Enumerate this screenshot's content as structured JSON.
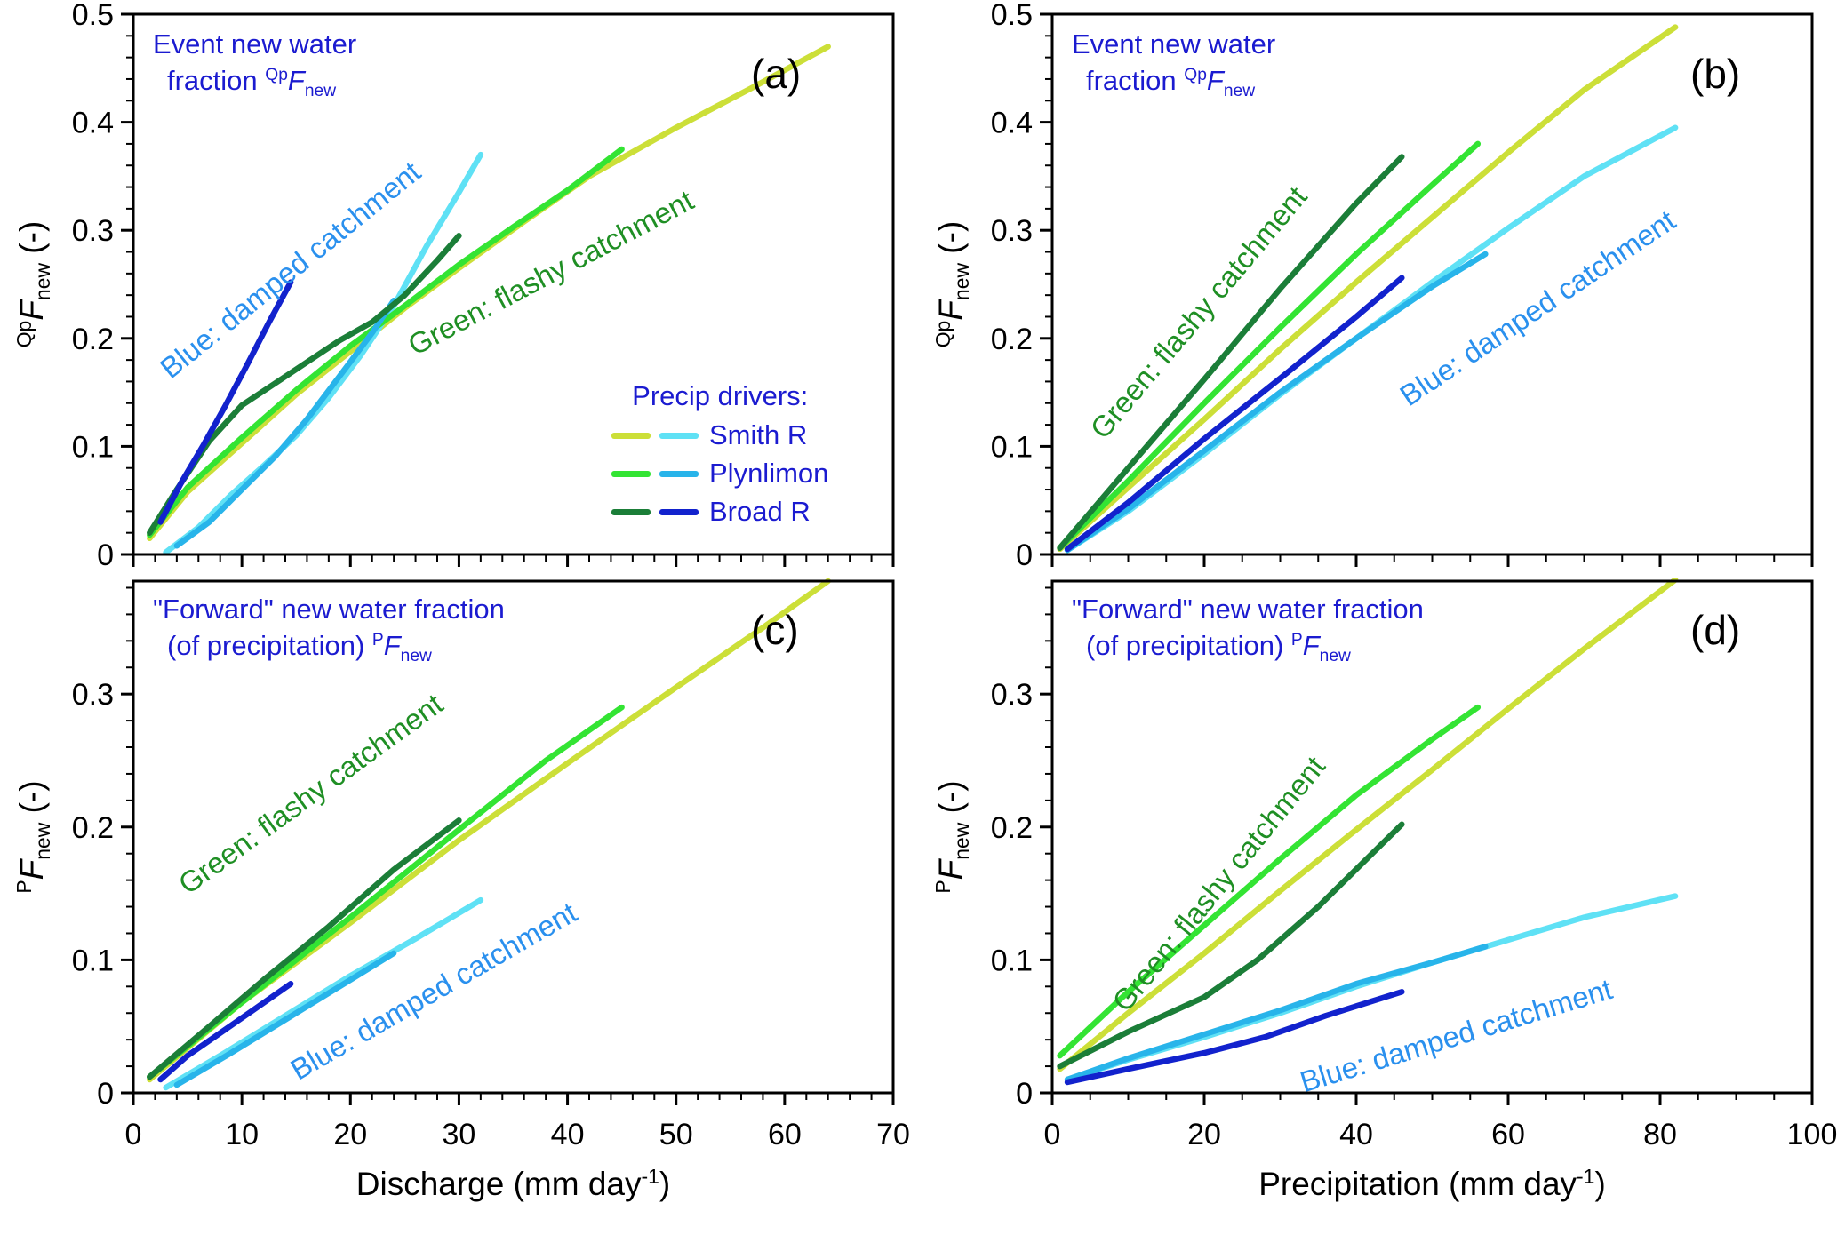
{
  "annotations": {
    "flashy": "Green: flashy catchment",
    "damped": "Blue: damped catchment"
  },
  "legend": {
    "title": "Precip drivers:",
    "entries": [
      {
        "label": "Smith R",
        "swatch_colors": [
          "#ccdf38",
          "#5fe1f5"
        ]
      },
      {
        "label": "Plynlimon",
        "swatch_colors": [
          "#33e433",
          "#28b4ea"
        ]
      },
      {
        "label": "Broad R",
        "swatch_colors": [
          "#1b7e38",
          "#1222cd"
        ]
      }
    ]
  },
  "colors": {
    "title_blue": "#1b1bd0",
    "flashy_label_green": "#1f8f24",
    "damped_label_blue": "#2a90ee",
    "axis": "#000000"
  },
  "chart_data": [
    {
      "id": "a",
      "type": "line",
      "panel_label": "(a)",
      "title": {
        "line1": "Event new water",
        "line2_pre": "fraction ",
        "sup": "Qp",
        "sym": "F",
        "sub": "new"
      },
      "ylabel": {
        "sup": "Qp",
        "sym": "F",
        "sub": "new",
        "post": " (-)"
      },
      "x_variable": "Discharge (mm day -1)",
      "xlim": [
        0,
        70
      ],
      "ylim": [
        0,
        0.5
      ],
      "xticks": [
        0,
        10,
        20,
        30,
        40,
        50,
        60,
        70
      ],
      "xminor": 2,
      "yticks": [
        0,
        0.1,
        0.2,
        0.3,
        0.4,
        0.5
      ],
      "yminor": 0.02,
      "grid": false,
      "series": [
        {
          "name": "Smith R — flashy",
          "color": "#ccdf38",
          "points": [
            [
              1.5,
              0.015
            ],
            [
              5,
              0.058
            ],
            [
              10,
              0.103
            ],
            [
              15,
              0.148
            ],
            [
              20,
              0.188
            ],
            [
              25,
              0.228
            ],
            [
              30,
              0.265
            ],
            [
              36,
              0.308
            ],
            [
              42,
              0.35
            ],
            [
              50,
              0.395
            ],
            [
              57,
              0.432
            ],
            [
              64,
              0.47
            ]
          ]
        },
        {
          "name": "Smith R — damped",
          "color": "#5fe1f5",
          "points": [
            [
              3,
              0.002
            ],
            [
              6,
              0.025
            ],
            [
              9,
              0.055
            ],
            [
              12,
              0.082
            ],
            [
              15,
              0.11
            ],
            [
              18,
              0.145
            ],
            [
              21,
              0.185
            ],
            [
              24,
              0.23
            ],
            [
              27,
              0.285
            ],
            [
              30,
              0.335
            ],
            [
              32,
              0.37
            ]
          ]
        },
        {
          "name": "Plynlimon — flashy",
          "color": "#33e433",
          "points": [
            [
              1.5,
              0.018
            ],
            [
              5,
              0.062
            ],
            [
              10,
              0.108
            ],
            [
              15,
              0.152
            ],
            [
              20,
              0.193
            ],
            [
              25,
              0.23
            ],
            [
              30,
              0.268
            ],
            [
              35,
              0.303
            ],
            [
              40,
              0.337
            ],
            [
              45,
              0.375
            ]
          ]
        },
        {
          "name": "Plynlimon — damped",
          "color": "#28b4ea",
          "points": [
            [
              4,
              0.008
            ],
            [
              7,
              0.03
            ],
            [
              10,
              0.06
            ],
            [
              13,
              0.09
            ],
            [
              16,
              0.125
            ],
            [
              19,
              0.165
            ],
            [
              22,
              0.205
            ],
            [
              24,
              0.235
            ]
          ]
        },
        {
          "name": "Broad R — flashy",
          "color": "#1b7e38",
          "points": [
            [
              1.5,
              0.02
            ],
            [
              4,
              0.06
            ],
            [
              7,
              0.105
            ],
            [
              10,
              0.138
            ],
            [
              13,
              0.158
            ],
            [
              16,
              0.178
            ],
            [
              19,
              0.198
            ],
            [
              22,
              0.215
            ],
            [
              25,
              0.24
            ],
            [
              28,
              0.272
            ],
            [
              30,
              0.295
            ]
          ]
        },
        {
          "name": "Broad R — damped",
          "color": "#1222cd",
          "points": [
            [
              2.5,
              0.03
            ],
            [
              4.5,
              0.068
            ],
            [
              6.5,
              0.102
            ],
            [
              8.5,
              0.138
            ],
            [
              10.5,
              0.176
            ],
            [
              12.5,
              0.215
            ],
            [
              14.5,
              0.252
            ]
          ]
        }
      ]
    },
    {
      "id": "b",
      "type": "line",
      "panel_label": "(b)",
      "title": {
        "line1": "Event new water",
        "line2_pre": "fraction ",
        "sup": "Qp",
        "sym": "F",
        "sub": "new"
      },
      "ylabel": {
        "sup": "Qp",
        "sym": "F",
        "sub": "new",
        "post": " (-)"
      },
      "x_variable": "Precipitation (mm day -1)",
      "xlim": [
        0,
        100
      ],
      "ylim": [
        0,
        0.5
      ],
      "xticks": [
        0,
        20,
        40,
        60,
        80,
        100
      ],
      "xminor": 5,
      "yticks": [
        0,
        0.1,
        0.2,
        0.3,
        0.4,
        0.5
      ],
      "yminor": 0.02,
      "grid": false,
      "series": [
        {
          "name": "Smith R — flashy",
          "color": "#ccdf38",
          "points": [
            [
              1,
              0.005
            ],
            [
              10,
              0.062
            ],
            [
              20,
              0.125
            ],
            [
              30,
              0.19
            ],
            [
              40,
              0.252
            ],
            [
              50,
              0.312
            ],
            [
              60,
              0.372
            ],
            [
              70,
              0.43
            ],
            [
              82,
              0.488
            ]
          ]
        },
        {
          "name": "Smith R — damped",
          "color": "#5fe1f5",
          "points": [
            [
              2,
              0.004
            ],
            [
              10,
              0.04
            ],
            [
              20,
              0.093
            ],
            [
              30,
              0.148
            ],
            [
              40,
              0.2
            ],
            [
              50,
              0.252
            ],
            [
              60,
              0.302
            ],
            [
              70,
              0.35
            ],
            [
              82,
              0.395
            ]
          ]
        },
        {
          "name": "Plynlimon — flashy",
          "color": "#33e433",
          "points": [
            [
              1,
              0.006
            ],
            [
              10,
              0.068
            ],
            [
              20,
              0.14
            ],
            [
              30,
              0.21
            ],
            [
              40,
              0.278
            ],
            [
              50,
              0.342
            ],
            [
              56,
              0.38
            ]
          ]
        },
        {
          "name": "Plynlimon — damped",
          "color": "#28b4ea",
          "points": [
            [
              2,
              0.004
            ],
            [
              10,
              0.042
            ],
            [
              20,
              0.096
            ],
            [
              30,
              0.15
            ],
            [
              40,
              0.2
            ],
            [
              50,
              0.248
            ],
            [
              57,
              0.278
            ]
          ]
        },
        {
          "name": "Broad R — flashy",
          "color": "#1b7e38",
          "points": [
            [
              1,
              0.006
            ],
            [
              10,
              0.08
            ],
            [
              20,
              0.162
            ],
            [
              30,
              0.246
            ],
            [
              40,
              0.325
            ],
            [
              46,
              0.368
            ]
          ]
        },
        {
          "name": "Broad R — damped",
          "color": "#1222cd",
          "points": [
            [
              2,
              0.005
            ],
            [
              10,
              0.048
            ],
            [
              20,
              0.107
            ],
            [
              30,
              0.163
            ],
            [
              40,
              0.22
            ],
            [
              46,
              0.256
            ]
          ]
        }
      ]
    },
    {
      "id": "c",
      "type": "line",
      "panel_label": "(c)",
      "title": {
        "line1": "\"Forward\" new water fraction",
        "line2_pre": "(of precipitation) ",
        "sup": "P",
        "sym": "F",
        "sub": "new"
      },
      "ylabel": {
        "sup": "P",
        "sym": "F",
        "sub": "new",
        "post": " (-)"
      },
      "xlabel": {
        "pre": "Discharge (mm day",
        "sup": "-1",
        "post": ")"
      },
      "xlim": [
        0,
        70
      ],
      "ylim": [
        0,
        0.385
      ],
      "xticks": [
        0,
        10,
        20,
        30,
        40,
        50,
        60,
        70
      ],
      "xminor": 2,
      "yticks": [
        0,
        0.1,
        0.2,
        0.3
      ],
      "yminor": 0.02,
      "grid": false,
      "series": [
        {
          "name": "Smith R — flashy",
          "color": "#ccdf38",
          "points": [
            [
              1.5,
              0.01
            ],
            [
              10,
              0.068
            ],
            [
              20,
              0.128
            ],
            [
              30,
              0.19
            ],
            [
              40,
              0.248
            ],
            [
              50,
              0.305
            ],
            [
              58,
              0.35
            ],
            [
              64,
              0.385
            ]
          ]
        },
        {
          "name": "Smith R — damped",
          "color": "#5fe1f5",
          "points": [
            [
              3,
              0.004
            ],
            [
              8,
              0.028
            ],
            [
              14,
              0.058
            ],
            [
              20,
              0.088
            ],
            [
              26,
              0.116
            ],
            [
              32,
              0.145
            ]
          ]
        },
        {
          "name": "Plynlimon — flashy",
          "color": "#33e433",
          "points": [
            [
              1.5,
              0.012
            ],
            [
              10,
              0.068
            ],
            [
              20,
              0.132
            ],
            [
              30,
              0.198
            ],
            [
              38,
              0.25
            ],
            [
              45,
              0.29
            ]
          ]
        },
        {
          "name": "Plynlimon — damped",
          "color": "#28b4ea",
          "points": [
            [
              4,
              0.006
            ],
            [
              9,
              0.03
            ],
            [
              14,
              0.055
            ],
            [
              19,
              0.08
            ],
            [
              24,
              0.105
            ]
          ]
        },
        {
          "name": "Broad R — flashy",
          "color": "#1b7e38",
          "points": [
            [
              1.5,
              0.012
            ],
            [
              7,
              0.05
            ],
            [
              12,
              0.085
            ],
            [
              18,
              0.125
            ],
            [
              24,
              0.168
            ],
            [
              30,
              0.205
            ]
          ]
        },
        {
          "name": "Broad R — damped",
          "color": "#1222cd",
          "points": [
            [
              2.5,
              0.01
            ],
            [
              5,
              0.028
            ],
            [
              8,
              0.045
            ],
            [
              11,
              0.062
            ],
            [
              14.5,
              0.082
            ]
          ]
        }
      ]
    },
    {
      "id": "d",
      "type": "line",
      "panel_label": "(d)",
      "title": {
        "line1": "\"Forward\" new water fraction",
        "line2_pre": "(of precipitation) ",
        "sup": "P",
        "sym": "F",
        "sub": "new"
      },
      "ylabel": {
        "sup": "P",
        "sym": "F",
        "sub": "new",
        "post": " (-)"
      },
      "xlabel": {
        "pre": "Precipitation (mm day",
        "sup": "-1",
        "post": ")"
      },
      "xlim": [
        0,
        100
      ],
      "ylim": [
        0,
        0.385
      ],
      "xticks": [
        0,
        20,
        40,
        60,
        80,
        100
      ],
      "xminor": 5,
      "yticks": [
        0,
        0.1,
        0.2,
        0.3
      ],
      "yminor": 0.02,
      "grid": false,
      "series": [
        {
          "name": "Smith R — flashy",
          "color": "#ccdf38",
          "points": [
            [
              1,
              0.018
            ],
            [
              10,
              0.06
            ],
            [
              20,
              0.105
            ],
            [
              30,
              0.152
            ],
            [
              40,
              0.198
            ],
            [
              50,
              0.243
            ],
            [
              60,
              0.289
            ],
            [
              70,
              0.334
            ],
            [
              82,
              0.386
            ]
          ]
        },
        {
          "name": "Smith R — damped",
          "color": "#5fe1f5",
          "points": [
            [
              2,
              0.01
            ],
            [
              10,
              0.025
            ],
            [
              20,
              0.042
            ],
            [
              30,
              0.06
            ],
            [
              40,
              0.08
            ],
            [
              50,
              0.098
            ],
            [
              60,
              0.115
            ],
            [
              70,
              0.132
            ],
            [
              82,
              0.148
            ]
          ]
        },
        {
          "name": "Plynlimon — flashy",
          "color": "#33e433",
          "points": [
            [
              1,
              0.028
            ],
            [
              10,
              0.076
            ],
            [
              20,
              0.126
            ],
            [
              30,
              0.176
            ],
            [
              40,
              0.224
            ],
            [
              50,
              0.266
            ],
            [
              56,
              0.29
            ]
          ]
        },
        {
          "name": "Plynlimon — damped",
          "color": "#28b4ea",
          "points": [
            [
              2,
              0.01
            ],
            [
              10,
              0.026
            ],
            [
              20,
              0.044
            ],
            [
              30,
              0.062
            ],
            [
              40,
              0.082
            ],
            [
              50,
              0.098
            ],
            [
              57,
              0.11
            ]
          ]
        },
        {
          "name": "Broad R — flashy",
          "color": "#1b7e38",
          "points": [
            [
              1,
              0.02
            ],
            [
              10,
              0.046
            ],
            [
              20,
              0.072
            ],
            [
              27,
              0.1
            ],
            [
              35,
              0.14
            ],
            [
              46,
              0.202
            ]
          ]
        },
        {
          "name": "Broad R — damped",
          "color": "#1222cd",
          "points": [
            [
              2,
              0.008
            ],
            [
              10,
              0.018
            ],
            [
              20,
              0.03
            ],
            [
              28,
              0.042
            ],
            [
              36,
              0.058
            ],
            [
              46,
              0.076
            ]
          ]
        }
      ]
    }
  ]
}
